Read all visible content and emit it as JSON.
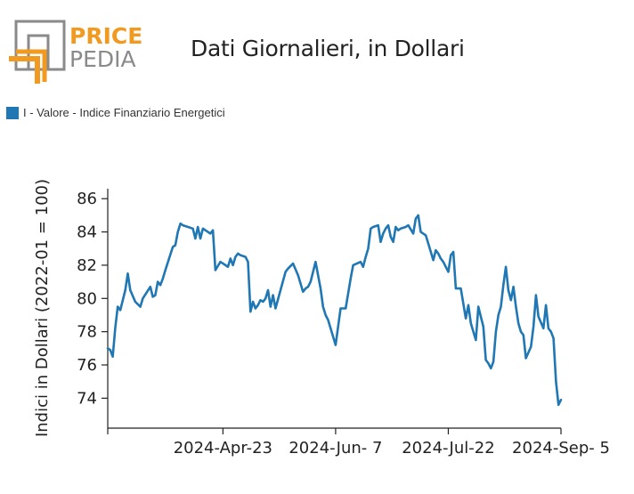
{
  "colors": {
    "logo_orange": "#f29a1f",
    "logo_gray": "#8a8a8a",
    "series": "#1f77b4",
    "axis": "#222222"
  },
  "logo": {
    "line1": "PRICE",
    "line2": "PEDIA"
  },
  "title": "Dati Giornalieri, in Dollari",
  "legend": {
    "label": "I - Valore - Indice Finanziario Energetici"
  },
  "chart_data": {
    "type": "line",
    "title": "Dati Giornalieri, in Dollari",
    "ylabel": "Indici in Dollari (2022-01 = 100)",
    "xlabel": "",
    "ylim": [
      72.2,
      86.6
    ],
    "yticks": [
      74,
      76,
      78,
      80,
      82,
      84,
      86
    ],
    "xticks": [
      "2024-Apr-23",
      "2024-Jun- 7",
      "2024-Jul-22",
      "2024-Sep- 5"
    ],
    "grid": false,
    "legend_position": "top-left",
    "series": [
      {
        "name": "I - Valore - Indice Finanziario Energetici",
        "x": [
          "2024-03-08",
          "2024-03-09",
          "2024-03-10",
          "2024-03-11",
          "2024-03-12",
          "2024-03-13",
          "2024-03-15",
          "2024-03-16",
          "2024-03-17",
          "2024-03-19",
          "2024-03-21",
          "2024-03-22",
          "2024-03-25",
          "2024-03-26",
          "2024-03-27",
          "2024-03-28",
          "2024-03-29",
          "2024-03-30",
          "2024-03-31",
          "2024-04-03",
          "2024-04-04",
          "2024-04-05",
          "2024-04-06",
          "2024-04-07",
          "2024-04-11",
          "2024-04-12",
          "2024-04-13",
          "2024-04-14",
          "2024-04-15",
          "2024-04-16",
          "2024-04-17",
          "2024-04-18",
          "2024-04-19",
          "2024-04-20",
          "2024-04-22",
          "2024-04-23",
          "2024-04-24",
          "2024-04-25",
          "2024-04-26",
          "2024-04-27",
          "2024-04-28",
          "2024-04-29",
          "2024-04-30",
          "2024-05-02",
          "2024-05-03",
          "2024-05-04",
          "2024-05-05",
          "2024-05-06",
          "2024-05-07",
          "2024-05-08",
          "2024-05-09",
          "2024-05-10",
          "2024-05-11",
          "2024-05-12",
          "2024-05-13",
          "2024-05-14",
          "2024-05-16",
          "2024-05-18",
          "2024-05-19",
          "2024-05-21",
          "2024-05-23",
          "2024-05-25",
          "2024-05-26",
          "2024-05-27",
          "2024-05-28",
          "2024-05-30",
          "2024-06-01",
          "2024-06-02",
          "2024-06-03",
          "2024-06-04",
          "2024-06-07",
          "2024-06-09",
          "2024-06-11",
          "2024-06-12",
          "2024-06-13",
          "2024-06-14",
          "2024-06-17",
          "2024-06-18",
          "2024-06-19",
          "2024-06-20",
          "2024-06-21",
          "2024-06-22",
          "2024-06-24",
          "2024-06-25",
          "2024-06-26",
          "2024-06-27",
          "2024-06-28",
          "2024-06-29",
          "2024-06-30",
          "2024-07-01",
          "2024-07-02",
          "2024-07-03",
          "2024-07-05",
          "2024-07-06",
          "2024-07-08",
          "2024-07-09",
          "2024-07-10",
          "2024-07-11",
          "2024-07-13",
          "2024-07-14",
          "2024-07-16",
          "2024-07-17",
          "2024-07-18",
          "2024-07-19",
          "2024-07-20",
          "2024-07-22",
          "2024-07-23",
          "2024-07-24",
          "2024-07-25",
          "2024-07-26",
          "2024-07-27",
          "2024-07-29",
          "2024-07-30",
          "2024-07-31",
          "2024-08-01",
          "2024-08-02",
          "2024-08-03",
          "2024-08-05",
          "2024-08-06",
          "2024-08-07",
          "2024-08-08",
          "2024-08-09",
          "2024-08-10",
          "2024-08-11",
          "2024-08-12",
          "2024-08-13",
          "2024-08-14",
          "2024-08-15",
          "2024-08-16",
          "2024-08-17",
          "2024-08-18",
          "2024-08-19",
          "2024-08-20",
          "2024-08-21",
          "2024-08-22",
          "2024-08-24",
          "2024-08-25",
          "2024-08-26",
          "2024-08-27",
          "2024-08-29",
          "2024-08-30",
          "2024-08-31",
          "2024-09-01",
          "2024-09-02",
          "2024-09-03",
          "2024-09-04",
          "2024-09-05"
        ],
        "values": [
          77.0,
          76.9,
          76.5,
          78.2,
          79.5,
          79.3,
          80.5,
          81.5,
          80.5,
          79.8,
          79.5,
          80.0,
          80.7,
          80.1,
          80.2,
          81.0,
          80.8,
          81.2,
          81.7,
          83.1,
          83.2,
          84.0,
          84.5,
          84.4,
          84.2,
          83.6,
          84.3,
          83.6,
          84.2,
          84.1,
          84.0,
          83.9,
          84.1,
          81.7,
          82.2,
          82.1,
          82.0,
          81.9,
          82.4,
          82.0,
          82.5,
          82.7,
          82.6,
          82.5,
          82.2,
          79.2,
          79.8,
          79.4,
          79.6,
          79.9,
          79.8,
          80.0,
          80.5,
          79.5,
          80.2,
          79.4,
          80.5,
          81.6,
          81.8,
          82.1,
          81.4,
          80.4,
          80.6,
          80.7,
          81.0,
          82.2,
          80.6,
          79.5,
          79.0,
          78.7,
          77.2,
          79.4,
          79.4,
          80.3,
          81.2,
          82.0,
          82.2,
          81.9,
          82.5,
          83.0,
          84.2,
          84.3,
          84.4,
          83.4,
          83.9,
          84.2,
          84.4,
          83.7,
          83.4,
          84.3,
          84.1,
          84.2,
          84.3,
          84.4,
          83.9,
          84.8,
          85.0,
          84.0,
          83.8,
          83.3,
          82.3,
          82.9,
          82.7,
          82.4,
          82.2,
          81.6,
          82.6,
          82.8,
          80.6,
          80.6,
          80.6,
          78.8,
          79.6,
          78.5,
          78.0,
          77.5,
          79.5,
          78.3,
          76.3,
          76.1,
          75.8,
          76.2,
          78.0,
          79.0,
          79.5,
          80.8,
          81.9,
          80.5,
          79.9,
          80.7,
          79.5,
          78.5,
          78.0,
          77.8,
          76.4,
          77.1,
          78.3,
          80.2,
          78.9,
          78.2,
          79.6,
          78.2,
          78.0,
          77.6,
          75.0,
          73.6,
          73.9
        ]
      }
    ]
  }
}
